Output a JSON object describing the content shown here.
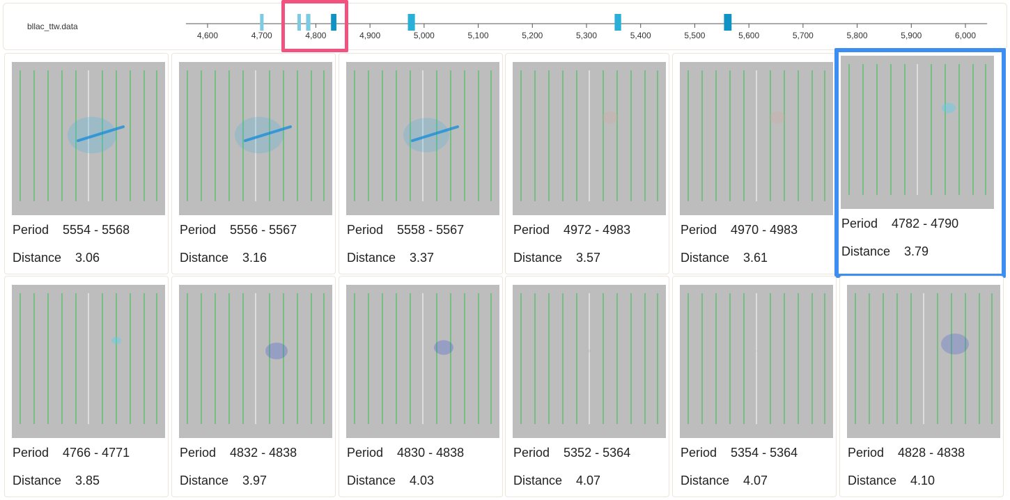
{
  "dataset": {
    "name": "bllac_ttw.data"
  },
  "timeline": {
    "min": 4560,
    "max": 6040,
    "ticks": [
      "4,600",
      "4,700",
      "4,800",
      "4,900",
      "5,000",
      "5,100",
      "5,200",
      "5,300",
      "5,400",
      "5,500",
      "5,600",
      "5,700",
      "5,800",
      "5,900",
      "6,000"
    ],
    "tick_values": [
      4600,
      4700,
      4800,
      4900,
      5000,
      5100,
      5200,
      5300,
      5400,
      5500,
      5600,
      5700,
      5800,
      5900,
      6000
    ],
    "colors": {
      "axis": "#555555",
      "marker": "#2ab0d6",
      "marker_light": "#7ccbe3",
      "marker_dark": "#0e93c2",
      "selection": "#f0537f"
    },
    "markers": [
      {
        "start": 4697,
        "end": 4701,
        "shade": "light"
      },
      {
        "start": 4766,
        "end": 4771,
        "shade": "light"
      },
      {
        "start": 4782,
        "end": 4790,
        "shade": "light"
      },
      {
        "start": 4828,
        "end": 4838,
        "shade": "dark"
      },
      {
        "start": 4970,
        "end": 4983,
        "shade": "mid"
      },
      {
        "start": 5352,
        "end": 5364,
        "shade": "mid"
      },
      {
        "start": 5554,
        "end": 5568,
        "shade": "dark"
      }
    ]
  },
  "cards": [
    {
      "period_label": "Period",
      "period": "5554 - 5568",
      "distance_label": "Distance",
      "distance": "3.06"
    },
    {
      "period_label": "Period",
      "period": "5556 - 5567",
      "distance_label": "Distance",
      "distance": "3.16"
    },
    {
      "period_label": "Period",
      "period": "5558 - 5567",
      "distance_label": "Distance",
      "distance": "3.37"
    },
    {
      "period_label": "Period",
      "period": "4972 - 4983",
      "distance_label": "Distance",
      "distance": "3.57"
    },
    {
      "period_label": "Period",
      "period": "4970 - 4983",
      "distance_label": "Distance",
      "distance": "3.61"
    },
    {
      "period_label": "Period",
      "period": "4782 - 4790",
      "distance_label": "Distance",
      "distance": "3.79",
      "selected": true
    },
    {
      "period_label": "Period",
      "period": "4766 - 4771",
      "distance_label": "Distance",
      "distance": "3.85"
    },
    {
      "period_label": "Period",
      "period": "4832 - 4838",
      "distance_label": "Distance",
      "distance": "3.97"
    },
    {
      "period_label": "Period",
      "period": "4830 - 4838",
      "distance_label": "Distance",
      "distance": "4.03"
    },
    {
      "period_label": "Period",
      "period": "5352 - 5364",
      "distance_label": "Distance",
      "distance": "4.07"
    },
    {
      "period_label": "Period",
      "period": "5354 - 5364",
      "distance_label": "Distance",
      "distance": "4.07"
    },
    {
      "period_label": "Period",
      "period": "4828 - 4838",
      "distance_label": "Distance",
      "distance": "4.10"
    }
  ],
  "thumbnail": {
    "background": "#bdbdbd",
    "grid_color": "#2fbf4a",
    "center_color": "#e8e8e8"
  }
}
